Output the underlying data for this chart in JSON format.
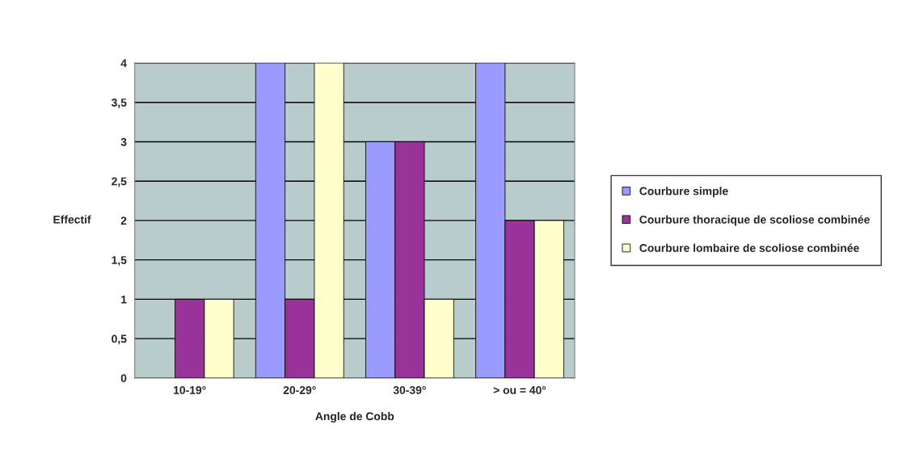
{
  "chart_data": {
    "type": "bar",
    "xlabel": "Angle de Cobb",
    "ylabel": "Effectif",
    "categories": [
      "10-19°",
      "20-29°",
      "30-39°",
      "> ou = 40°"
    ],
    "series": [
      {
        "name": "Courbure simple",
        "color": "#9999ff",
        "values": [
          0,
          4,
          3,
          4
        ]
      },
      {
        "name": "Courbure thoracique de scoliose combinée",
        "color": "#993399",
        "values": [
          1,
          1,
          3,
          2
        ]
      },
      {
        "name": "Courbure lombaire de scoliose combinée",
        "color": "#ffffcc",
        "values": [
          1,
          4,
          1,
          2
        ]
      }
    ],
    "ylim": [
      0,
      4
    ],
    "yticks": [
      0,
      {
        "value": 0.5,
        "label": "0,5"
      },
      1,
      {
        "value": 1.5,
        "label": "1,5"
      },
      2,
      {
        "value": 2.5,
        "label": "2,5"
      },
      3,
      {
        "value": 3.5,
        "label": "3,5"
      },
      4
    ],
    "grid": "y",
    "legend": "right"
  }
}
